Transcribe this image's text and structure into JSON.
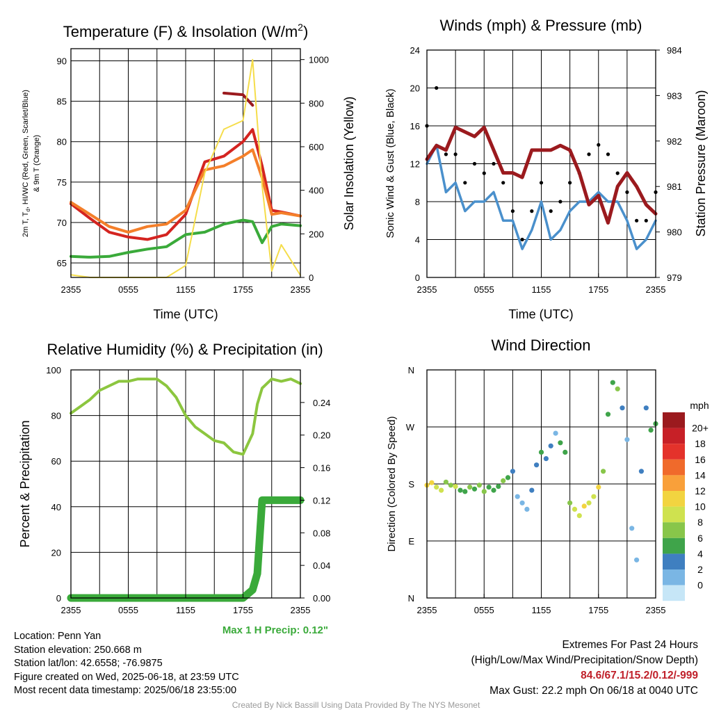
{
  "panels": {
    "temp": {
      "title": "Temperature (F) & Insolation (W/m",
      "title_sup": "2",
      "title_end": ")",
      "ylabel_left_line1": "2m T, T",
      "ylabel_left_sub": "d",
      "ylabel_left_line1_end": ", HI/WC (Red, Green, Scarlet/Blue)",
      "ylabel_left_line2": "& 9m T (Orange)",
      "ylabel_right": "Solar Insolation (Yellow)",
      "xlabel": "Time (UTC)"
    },
    "wind": {
      "title": "Winds (mph) & Pressure (mb)",
      "ylabel_left": "Sonic Wind & Gust (Blue, Black)",
      "ylabel_right": "Station Pressure (Maroon)",
      "xlabel": "Time (UTC)"
    },
    "rh": {
      "title": "Relative Humidity (%) & Precipitation (in)",
      "ylabel_left": "Percent & Precipitation",
      "max_precip_label": "Max 1 H Precip: 0.12\""
    },
    "dir": {
      "title": "Wind Direction",
      "ylabel_left": "Direction (Colored By Speed)",
      "legend_title": "mph",
      "legend_labels": [
        "20+",
        "18",
        "16",
        "14",
        "12",
        "10",
        "8",
        "6",
        "4",
        "2",
        "0"
      ],
      "legend_colors": [
        "#9b1a1e",
        "#c72027",
        "#e4322b",
        "#f06a2b",
        "#f9a03a",
        "#f2d440",
        "#cfe24f",
        "#88c64a",
        "#3fa44a",
        "#3f7fc0",
        "#7ab6e4",
        "#c6e6f7"
      ]
    }
  },
  "info": {
    "location": "Location: Penn Yan",
    "elevation": "Station elevation: 250.668 m",
    "latlon": "Station lat/lon: 42.6558; -76.9875",
    "created": "Figure created on Wed, 2025-06-18, at 23:59 UTC",
    "recent": "Most recent data timestamp: 2025/06/18 23:55:00",
    "extremes_title": "Extremes For Past 24 Hours",
    "extremes_sub": "(High/Low/Max Wind/Precipitation/Snow Depth)",
    "extremes_value": "84.6/67.1/15.2/0.12/-999",
    "max_gust": "Max Gust: 22.2 mph On 06/18 at 0040 UTC",
    "credit": "Created By Nick Bassill Using Data Provided By The NYS Mesonet"
  },
  "chart_data": [
    {
      "type": "line",
      "title": "Temperature (F) & Insolation (W/m2)",
      "xlabel": "Time (UTC)",
      "ylabel": "2m T, Td, HI/WC (Red, Green, Scarlet/Blue) & 9m T (Orange)",
      "ylabel_right": "Solar Insolation (Yellow)",
      "xticks": [
        "2355",
        "0555",
        "1155",
        "1755",
        "2355"
      ],
      "x_hours": [
        0,
        2,
        4,
        6,
        8,
        10,
        12,
        14,
        16,
        18,
        19,
        20,
        21,
        22,
        24
      ],
      "ylim": [
        63.2,
        91.5
      ],
      "yticks": [
        65,
        70,
        75,
        80,
        85,
        90
      ],
      "ylim_right": [
        0,
        1050
      ],
      "yticks_right": [
        0,
        200,
        400,
        600,
        800,
        1000
      ],
      "grid": true,
      "series": [
        {
          "name": "2m T",
          "axis": "left",
          "color": "#d42420",
          "values": [
            72.3,
            70.5,
            68.8,
            68.2,
            67.9,
            68.5,
            71.0,
            77.5,
            78.2,
            80.0,
            81.5,
            77.0,
            71.5,
            71.3,
            70.8
          ]
        },
        {
          "name": "9m T",
          "axis": "left",
          "color": "#f47f2a",
          "values": [
            72.5,
            71.0,
            69.5,
            68.8,
            69.5,
            69.8,
            71.5,
            76.5,
            77.0,
            78.2,
            79.0,
            75.5,
            71.0,
            71.2,
            70.8
          ]
        },
        {
          "name": "Td",
          "axis": "left",
          "color": "#3aaa3a",
          "values": [
            65.8,
            65.7,
            65.8,
            66.3,
            66.7,
            67.0,
            68.5,
            68.8,
            69.8,
            70.3,
            70.1,
            67.5,
            69.5,
            69.8,
            69.6
          ]
        },
        {
          "name": "HI",
          "axis": "left",
          "color": "#9b1a1e",
          "values": [
            null,
            null,
            null,
            null,
            null,
            null,
            null,
            null,
            86.0,
            85.8,
            84.5,
            null,
            null,
            null,
            null
          ]
        },
        {
          "name": "Solar Insolation",
          "axis": "right",
          "color": "#f5dd4a",
          "values": [
            12,
            0,
            0,
            0,
            0,
            0,
            55,
            480,
            680,
            720,
            1000,
            420,
            30,
            150,
            10
          ]
        }
      ]
    },
    {
      "type": "line",
      "title": "Winds (mph) & Pressure (mb)",
      "xlabel": "Time (UTC)",
      "ylabel": "Sonic Wind & Gust (Blue, Black)",
      "ylabel_right": "Station Pressure (Maroon)",
      "xticks": [
        "2355",
        "0555",
        "1155",
        "1755",
        "2355"
      ],
      "x_hours": [
        0,
        1,
        2,
        3,
        4,
        5,
        6,
        7,
        8,
        9,
        10,
        11,
        12,
        13,
        14,
        15,
        16,
        17,
        18,
        19,
        20,
        21,
        22,
        23,
        24
      ],
      "ylim": [
        0,
        24
      ],
      "yticks": [
        0,
        4,
        8,
        12,
        16,
        20,
        24
      ],
      "ylim_right": [
        979,
        984
      ],
      "yticks_right": [
        979,
        980,
        981,
        982,
        983,
        984
      ],
      "grid": true,
      "series": [
        {
          "name": "Sonic Wind",
          "axis": "left",
          "color": "#4a90cc",
          "values": [
            12,
            14,
            9,
            10,
            7,
            8,
            8,
            9,
            6,
            6,
            3,
            5,
            8,
            4,
            5,
            7,
            8,
            8,
            9,
            8,
            8,
            6,
            3,
            4,
            6
          ]
        },
        {
          "name": "Gust",
          "axis": "left",
          "color": "#000000",
          "values": [
            16,
            20,
            13,
            13,
            10,
            12,
            11,
            12,
            10,
            7,
            4,
            7,
            10,
            7,
            8,
            10,
            11,
            13,
            14,
            13,
            11,
            9,
            6,
            6,
            9
          ]
        },
        {
          "name": "Station Pressure",
          "axis": "right",
          "color": "#9b1a1e",
          "values": [
            981.6,
            981.9,
            981.8,
            982.3,
            982.2,
            982.1,
            982.3,
            981.8,
            981.3,
            981.3,
            981.2,
            981.8,
            981.8,
            981.8,
            981.9,
            981.8,
            981.3,
            980.6,
            980.8,
            980.2,
            981.0,
            981.3,
            981.0,
            980.6,
            980.4
          ]
        }
      ]
    },
    {
      "type": "line",
      "title": "Relative Humidity (%) & Precipitation (in)",
      "ylabel": "Percent & Precipitation",
      "xticks": [
        "2355",
        "0555",
        "1155",
        "1755",
        "2355"
      ],
      "x_hours": [
        0,
        1,
        2,
        3,
        4,
        5,
        6,
        7,
        8,
        9,
        10,
        11,
        12,
        13,
        14,
        15,
        16,
        17,
        18,
        19,
        19.5,
        20,
        21,
        22,
        23,
        24
      ],
      "ylim": [
        0,
        100
      ],
      "yticks": [
        0,
        20,
        40,
        60,
        80,
        100
      ],
      "ylim_right": [
        0,
        0.28
      ],
      "yticks_right": [
        0.0,
        0.04,
        0.08,
        0.12,
        0.16,
        0.2,
        0.24
      ],
      "grid": true,
      "series": [
        {
          "name": "Relative Humidity",
          "axis": "left",
          "color": "#8cc63f",
          "values": [
            81,
            84,
            87,
            91,
            93,
            95,
            95,
            96,
            96,
            96,
            93,
            88,
            80,
            75,
            72,
            69,
            68,
            64,
            63,
            72,
            85,
            92,
            96,
            95,
            96,
            94
          ]
        },
        {
          "name": "Precipitation",
          "axis": "right",
          "color": "#3aaa3a",
          "values": [
            0,
            0,
            0,
            0,
            0,
            0,
            0,
            0,
            0,
            0,
            0,
            0,
            0,
            0,
            0,
            0,
            0,
            0,
            0,
            0.01,
            0.03,
            0.12,
            0.12,
            0.12,
            0.12,
            0.12
          ]
        }
      ],
      "max_1h_precip": 0.12
    },
    {
      "type": "scatter",
      "title": "Wind Direction",
      "ylabel": "Direction (Colored By Speed)",
      "xticks": [
        "2355",
        "0555",
        "1155",
        "1755",
        "2355"
      ],
      "yticks": [
        "N",
        "E",
        "S",
        "W",
        "N"
      ],
      "ylim": [
        0,
        360
      ],
      "grid": true,
      "colorbar_title": "mph",
      "colorbar_labels": [
        "20+",
        "18",
        "16",
        "14",
        "12",
        "10",
        "8",
        "6",
        "4",
        "2",
        "0"
      ],
      "x_hours": [
        0,
        0.5,
        1,
        1.5,
        2,
        2.5,
        3,
        3.5,
        4,
        4.5,
        5,
        5.5,
        6,
        6.5,
        7,
        7.5,
        8,
        8.5,
        9,
        9.5,
        10,
        10.5,
        11,
        11.5,
        12,
        12.5,
        13,
        13.5,
        14,
        14.5,
        15,
        15.5,
        16,
        16.5,
        17,
        17.5,
        18,
        18.5,
        19,
        19.5,
        20,
        20.5,
        21,
        21.5,
        22,
        22.5,
        23,
        23.5,
        24
      ],
      "direction_deg": [
        178,
        182,
        175,
        170,
        183,
        178,
        176,
        170,
        168,
        175,
        172,
        178,
        168,
        175,
        170,
        176,
        185,
        190,
        200,
        160,
        150,
        140,
        170,
        210,
        230,
        220,
        240,
        260,
        245,
        230,
        150,
        140,
        130,
        145,
        150,
        160,
        175,
        200,
        290,
        340,
        330,
        300,
        250,
        110,
        60,
        200,
        300,
        265,
        275
      ],
      "speed_mph": [
        13,
        12,
        11,
        10,
        8,
        9,
        10,
        7,
        6,
        8,
        7,
        9,
        8,
        7,
        6,
        7,
        8,
        7,
        5,
        3,
        2,
        3,
        4,
        5,
        6,
        5,
        4,
        3,
        6,
        7,
        9,
        10,
        11,
        12,
        11,
        10,
        12,
        8,
        7,
        6,
        8,
        4,
        3,
        2,
        3,
        5,
        4,
        6,
        7
      ]
    }
  ]
}
